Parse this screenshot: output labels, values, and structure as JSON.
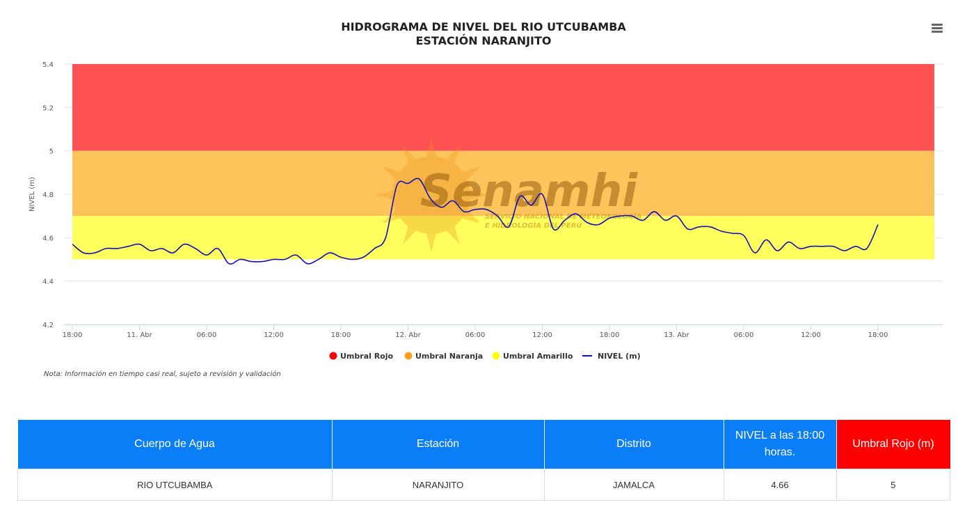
{
  "chart_data": {
    "type": "line",
    "title": "HIDROGRAMA DE NIVEL DEL RIO UTCUBAMBA",
    "subtitle": "ESTACIÓN NARANJITO",
    "ylabel": "NIVEL (m)",
    "ylim": [
      4.2,
      5.4
    ],
    "yticks": [
      "4.2",
      "4.4",
      "4.6",
      "4.8",
      "5",
      "5.2",
      "5.4"
    ],
    "xlim": [
      "2025-04-10 18:00",
      "2025-04-13 22:00"
    ],
    "xticks": [
      {
        "t": "2025-04-10 18:00",
        "label": "18:00"
      },
      {
        "t": "2025-04-11 00:00",
        "label": "11. Abr"
      },
      {
        "t": "2025-04-11 06:00",
        "label": "06:00"
      },
      {
        "t": "2025-04-11 12:00",
        "label": "12:00"
      },
      {
        "t": "2025-04-11 18:00",
        "label": "18:00"
      },
      {
        "t": "2025-04-12 00:00",
        "label": "12. Abr"
      },
      {
        "t": "2025-04-12 06:00",
        "label": "06:00"
      },
      {
        "t": "2025-04-12 12:00",
        "label": "12:00"
      },
      {
        "t": "2025-04-12 18:00",
        "label": "18:00"
      },
      {
        "t": "2025-04-13 00:00",
        "label": "13. Abr"
      },
      {
        "t": "2025-04-13 06:00",
        "label": "06:00"
      },
      {
        "t": "2025-04-13 12:00",
        "label": "12:00"
      },
      {
        "t": "2025-04-13 18:00",
        "label": "18:00"
      }
    ],
    "bands": [
      {
        "name": "Umbral Rojo",
        "from": 5.0,
        "to": 5.4,
        "color": "#ff5353"
      },
      {
        "name": "Umbral Naranja",
        "from": 4.7,
        "to": 5.0,
        "color": "#fec45c"
      },
      {
        "name": "Umbral Amarillo",
        "from": 4.5,
        "to": 4.7,
        "color": "#fefe5c"
      }
    ],
    "series": [
      {
        "name": "NIVEL (m)",
        "color": "#1010b8",
        "x": [
          "2025-04-10 18:00",
          "2025-04-10 19:00",
          "2025-04-10 20:00",
          "2025-04-10 21:00",
          "2025-04-10 22:00",
          "2025-04-10 23:00",
          "2025-04-11 00:00",
          "2025-04-11 01:00",
          "2025-04-11 02:00",
          "2025-04-11 03:00",
          "2025-04-11 04:00",
          "2025-04-11 05:00",
          "2025-04-11 06:00",
          "2025-04-11 07:00",
          "2025-04-11 08:00",
          "2025-04-11 09:00",
          "2025-04-11 10:00",
          "2025-04-11 11:00",
          "2025-04-11 12:00",
          "2025-04-11 13:00",
          "2025-04-11 14:00",
          "2025-04-11 15:00",
          "2025-04-11 16:00",
          "2025-04-11 17:00",
          "2025-04-11 18:00",
          "2025-04-11 19:00",
          "2025-04-11 20:00",
          "2025-04-11 21:00",
          "2025-04-11 22:00",
          "2025-04-11 23:00",
          "2025-04-12 00:00",
          "2025-04-12 01:00",
          "2025-04-12 02:00",
          "2025-04-12 03:00",
          "2025-04-12 04:00",
          "2025-04-12 05:00",
          "2025-04-12 06:00",
          "2025-04-12 07:00",
          "2025-04-12 08:00",
          "2025-04-12 09:00",
          "2025-04-12 10:00",
          "2025-04-12 11:00",
          "2025-04-12 12:00",
          "2025-04-12 13:00",
          "2025-04-12 14:00",
          "2025-04-12 15:00",
          "2025-04-12 16:00",
          "2025-04-12 17:00",
          "2025-04-12 18:00",
          "2025-04-12 19:00",
          "2025-04-12 20:00",
          "2025-04-12 21:00",
          "2025-04-12 22:00",
          "2025-04-12 23:00",
          "2025-04-13 00:00",
          "2025-04-13 01:00",
          "2025-04-13 02:00",
          "2025-04-13 03:00",
          "2025-04-13 04:00",
          "2025-04-13 05:00",
          "2025-04-13 06:00",
          "2025-04-13 07:00",
          "2025-04-13 08:00",
          "2025-04-13 09:00",
          "2025-04-13 10:00",
          "2025-04-13 11:00",
          "2025-04-13 12:00",
          "2025-04-13 13:00",
          "2025-04-13 14:00",
          "2025-04-13 15:00",
          "2025-04-13 16:00",
          "2025-04-13 17:00",
          "2025-04-13 18:00"
        ],
        "y": [
          4.57,
          4.53,
          4.53,
          4.55,
          4.55,
          4.56,
          4.57,
          4.54,
          4.55,
          4.53,
          4.57,
          4.55,
          4.52,
          4.55,
          4.48,
          4.5,
          4.49,
          4.49,
          4.5,
          4.5,
          4.52,
          4.48,
          4.5,
          4.53,
          4.51,
          4.5,
          4.51,
          4.55,
          4.6,
          4.84,
          4.85,
          4.87,
          4.78,
          4.74,
          4.77,
          4.72,
          4.73,
          4.73,
          4.7,
          4.65,
          4.79,
          4.75,
          4.8,
          4.64,
          4.68,
          4.71,
          4.67,
          4.66,
          4.69,
          4.7,
          4.7,
          4.68,
          4.72,
          4.68,
          4.7,
          4.64,
          4.65,
          4.65,
          4.63,
          4.62,
          4.61,
          4.53,
          4.59,
          4.54,
          4.58,
          4.55,
          4.56,
          4.56,
          4.56,
          4.54,
          4.56,
          4.55,
          4.66
        ]
      }
    ],
    "legend": [
      "Umbral Rojo",
      "Umbral Naranja",
      "Umbral Amarillo",
      "NIVEL (m)"
    ],
    "legend_position": "bottom-center",
    "grid": true
  },
  "watermark": {
    "brand": "Senamhi",
    "tagline_1": "SERVICIO NACIONAL DE METEOROLOGÍA",
    "tagline_2": "E HIDROLOGÍA DEL PERÚ"
  },
  "menu": {
    "icon": "hamburger-menu-icon"
  },
  "note": "Nota: Información en tiempo casi real, sujeto a revisión y validación",
  "table": {
    "headers": [
      "Cuerpo de Agua",
      "Estación",
      "Distrito",
      "NIVEL a las 18:00 horas.",
      "Umbral Rojo (m)"
    ],
    "row": [
      "RIO UTCUBAMBA",
      "NARANJITO",
      "JAMALCA",
      "4.66",
      "5"
    ],
    "header_color": "#0a7ef7",
    "header_alert_color": "#fe0000"
  }
}
